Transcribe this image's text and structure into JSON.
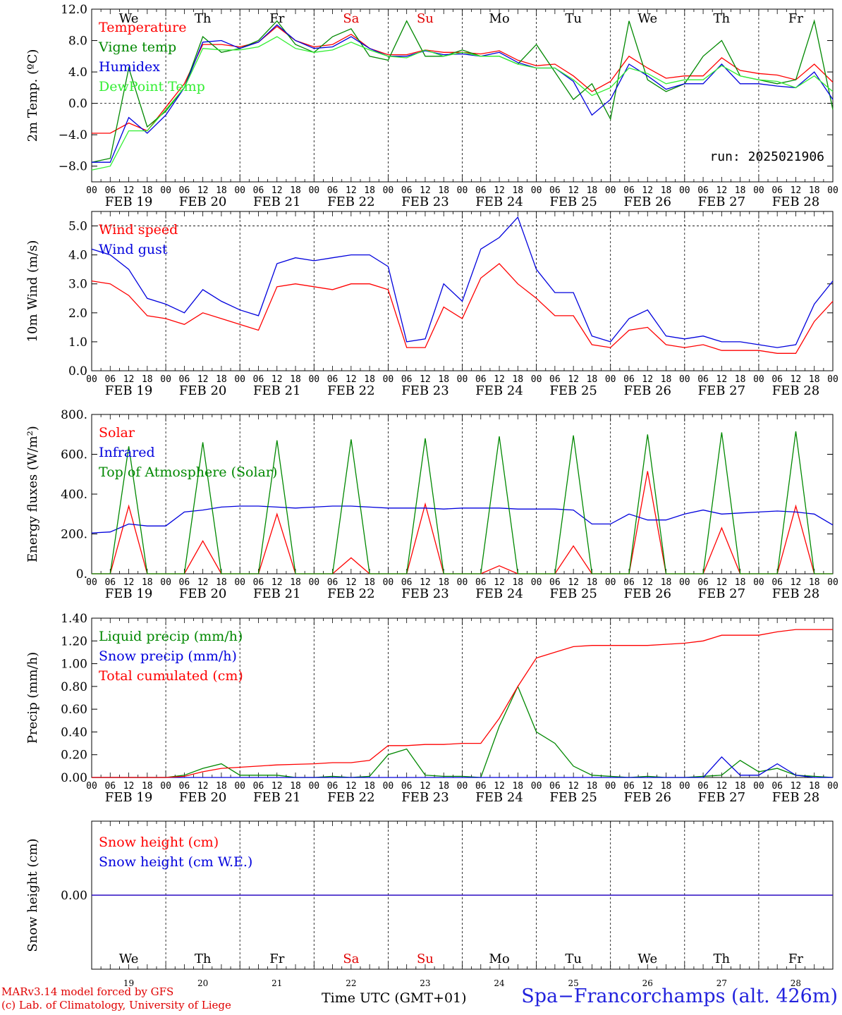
{
  "run_label": "run: 2025021906",
  "days": [
    "FEB 19",
    "FEB 20",
    "FEB 21",
    "FEB 22",
    "FEB 23",
    "FEB 24",
    "FEB 25",
    "FEB 26",
    "FEB 27",
    "FEB 28"
  ],
  "weekdays": [
    "We",
    "Th",
    "Fr",
    "Sa",
    "Su",
    "Mo",
    "Tu",
    "We",
    "Th",
    "Fr"
  ],
  "weekday_colors": [
    "#000000",
    "#000000",
    "#000000",
    "#e00000",
    "#e00000",
    "#000000",
    "#000000",
    "#000000",
    "#000000",
    "#000000"
  ],
  "day_numbers": [
    "19",
    "20",
    "21",
    "22",
    "23",
    "24",
    "25",
    "26",
    "27",
    "28"
  ],
  "hour_ticks": [
    "00",
    "06",
    "12",
    "18"
  ],
  "hour_end": "00",
  "footer": {
    "model": "MARv3.14 model forced by GFS",
    "lab": "(c) Lab. of Climatology, University of Liege",
    "axis": "Time UTC (GMT+01)",
    "station": "Spa−Francorchamps (alt. 426m)"
  },
  "chart_data": [
    {
      "type": "line",
      "ylabel": "2m Temp. (ºC)",
      "ylim": [
        -10,
        12
      ],
      "yticks": [
        "12.0",
        "8.0",
        "4.0",
        "0.0",
        "−4.0",
        "−8.0"
      ],
      "ytick_values": [
        12,
        8,
        4,
        0,
        -4,
        -8
      ],
      "x_unit": "hours since FEB 19 00 UTC",
      "x": [
        0,
        6,
        12,
        18,
        24,
        30,
        36,
        42,
        48,
        54,
        60,
        66,
        72,
        78,
        84,
        90,
        96,
        102,
        108,
        114,
        120,
        126,
        132,
        138,
        144,
        150,
        156,
        162,
        168,
        174,
        180,
        186,
        192,
        198,
        204,
        210,
        216,
        222,
        228,
        234,
        240
      ],
      "series": [
        {
          "name": "Temperature",
          "color": "#ff0000",
          "values": [
            -3.8,
            -3.8,
            -2.5,
            -3.5,
            -0.5,
            2.5,
            7.5,
            7.5,
            7.2,
            7.8,
            9.8,
            8.0,
            7.2,
            7.5,
            8.8,
            7.0,
            6.2,
            6.2,
            6.8,
            6.5,
            6.5,
            6.3,
            6.7,
            5.5,
            4.8,
            5.0,
            3.5,
            1.5,
            2.8,
            6.0,
            4.5,
            3.2,
            3.5,
            3.5,
            5.8,
            4.2,
            3.8,
            3.6,
            3.0,
            5.0,
            2.7
          ]
        },
        {
          "name": "Vigne temp",
          "color": "#008800",
          "values": [
            -7.5,
            -7.0,
            4.5,
            -3.0,
            -1.0,
            2.0,
            8.5,
            6.5,
            7.0,
            8.0,
            10.5,
            7.5,
            6.5,
            8.5,
            9.5,
            6.0,
            5.5,
            10.5,
            6.0,
            6.0,
            6.8,
            6.0,
            6.0,
            5.0,
            7.5,
            4.0,
            0.5,
            2.5,
            -2.0,
            10.5,
            3.0,
            1.5,
            2.5,
            6.0,
            8.0,
            3.5,
            3.0,
            2.5,
            3.0,
            10.5,
            -0.8
          ]
        },
        {
          "name": "Humidex",
          "color": "#0000dd",
          "values": [
            -7.5,
            -7.5,
            -1.8,
            -3.8,
            -1.5,
            2.0,
            7.8,
            8.0,
            7.0,
            7.8,
            10.0,
            8.0,
            7.0,
            7.2,
            8.5,
            7.0,
            6.0,
            6.0,
            6.7,
            6.2,
            6.3,
            6.0,
            6.5,
            5.2,
            4.5,
            4.5,
            2.8,
            -1.5,
            0.5,
            5.0,
            3.5,
            1.8,
            2.5,
            2.5,
            5.0,
            2.5,
            2.5,
            2.2,
            2.0,
            4.0,
            0.5
          ]
        },
        {
          "name": "DewPoint Temp",
          "color": "#33ee33",
          "values": [
            -8.5,
            -8.0,
            -3.5,
            -3.5,
            -0.8,
            2.0,
            7.0,
            6.8,
            6.8,
            7.2,
            8.5,
            7.0,
            6.5,
            6.8,
            7.8,
            6.8,
            6.0,
            5.8,
            6.8,
            6.0,
            6.5,
            6.0,
            6.0,
            5.0,
            4.5,
            4.5,
            3.0,
            1.0,
            2.0,
            4.5,
            3.8,
            2.5,
            3.0,
            3.0,
            4.8,
            3.5,
            3.0,
            2.8,
            2.0,
            3.5,
            1.5
          ]
        }
      ]
    },
    {
      "type": "line",
      "ylabel": "10m Wind (m/s)",
      "ylim": [
        0,
        5.5
      ],
      "yticks": [
        "5.0",
        "4.0",
        "3.0",
        "2.0",
        "1.0",
        "0.0"
      ],
      "ytick_values": [
        5,
        4,
        3,
        2,
        1,
        0
      ],
      "x_unit": "hours since FEB 19 00 UTC",
      "x": [
        0,
        6,
        12,
        18,
        24,
        30,
        36,
        42,
        48,
        54,
        60,
        66,
        72,
        78,
        84,
        90,
        96,
        102,
        108,
        114,
        120,
        126,
        132,
        138,
        144,
        150,
        156,
        162,
        168,
        174,
        180,
        186,
        192,
        198,
        204,
        210,
        216,
        222,
        228,
        234,
        240
      ],
      "series": [
        {
          "name": "Wind speed",
          "color": "#ff0000",
          "values": [
            3.1,
            3.0,
            2.6,
            1.9,
            1.8,
            1.6,
            2.0,
            1.8,
            1.6,
            1.4,
            2.9,
            3.0,
            2.9,
            2.8,
            3.0,
            3.0,
            2.8,
            0.8,
            0.8,
            2.2,
            1.8,
            3.2,
            3.7,
            3.0,
            2.5,
            1.9,
            1.9,
            0.9,
            0.8,
            1.4,
            1.5,
            0.9,
            0.8,
            0.9,
            0.7,
            0.7,
            0.7,
            0.6,
            0.6,
            1.7,
            2.4
          ]
        },
        {
          "name": "Wind gust",
          "color": "#0000dd",
          "values": [
            4.2,
            4.0,
            3.5,
            2.5,
            2.3,
            2.0,
            2.8,
            2.4,
            2.1,
            1.9,
            3.7,
            3.9,
            3.8,
            3.9,
            4.0,
            4.0,
            3.6,
            1.0,
            1.1,
            3.0,
            2.4,
            4.2,
            4.6,
            5.3,
            3.5,
            2.7,
            2.7,
            1.2,
            1.0,
            1.8,
            2.1,
            1.2,
            1.1,
            1.2,
            1.0,
            1.0,
            0.9,
            0.8,
            0.9,
            2.3,
            3.1
          ]
        }
      ]
    },
    {
      "type": "line",
      "ylabel": "Energy fluxes (W/m²)",
      "ylim": [
        0,
        800
      ],
      "yticks": [
        "800.",
        "600.",
        "400.",
        "200.",
        "0."
      ],
      "ytick_values": [
        800,
        600,
        400,
        200,
        0
      ],
      "x_unit": "hours since FEB 19 00 UTC",
      "x": [
        0,
        6,
        12,
        18,
        24,
        30,
        36,
        42,
        48,
        54,
        60,
        66,
        72,
        78,
        84,
        90,
        96,
        102,
        108,
        114,
        120,
        126,
        132,
        138,
        144,
        150,
        156,
        162,
        168,
        174,
        180,
        186,
        192,
        198,
        204,
        210,
        216,
        222,
        228,
        234,
        240
      ],
      "series": [
        {
          "name": "Solar",
          "color": "#ff0000",
          "values": [
            0,
            0,
            340,
            0,
            0,
            0,
            165,
            0,
            0,
            0,
            300,
            0,
            0,
            0,
            80,
            0,
            0,
            0,
            350,
            0,
            0,
            0,
            40,
            0,
            0,
            0,
            140,
            0,
            0,
            0,
            515,
            0,
            0,
            0,
            230,
            0,
            0,
            0,
            340,
            0,
            0
          ]
        },
        {
          "name": "Infrared",
          "color": "#0000dd",
          "values": [
            205,
            210,
            250,
            240,
            240,
            310,
            320,
            335,
            340,
            340,
            335,
            330,
            335,
            340,
            340,
            335,
            330,
            330,
            330,
            325,
            330,
            330,
            330,
            325,
            325,
            325,
            320,
            250,
            250,
            300,
            270,
            270,
            300,
            320,
            300,
            305,
            310,
            315,
            310,
            300,
            245
          ]
        },
        {
          "name": "Top of Atmosphere (Solar)",
          "color": "#008800",
          "values": [
            0,
            0,
            640,
            0,
            0,
            0,
            660,
            0,
            0,
            0,
            670,
            0,
            0,
            0,
            675,
            0,
            0,
            0,
            680,
            0,
            0,
            0,
            690,
            0,
            0,
            0,
            695,
            0,
            0,
            0,
            700,
            0,
            0,
            0,
            710,
            0,
            0,
            0,
            715,
            0,
            0
          ]
        }
      ]
    },
    {
      "type": "line",
      "ylabel": "Precip (mm/h)",
      "ylim": [
        0,
        1.4
      ],
      "yticks": [
        "1.40",
        "1.20",
        "1.00",
        "0.80",
        "0.60",
        "0.40",
        "0.20",
        "0.00"
      ],
      "ytick_values": [
        1.4,
        1.2,
        1.0,
        0.8,
        0.6,
        0.4,
        0.2,
        0.0
      ],
      "x_unit": "hours since FEB 19 00 UTC",
      "x": [
        0,
        6,
        12,
        18,
        24,
        30,
        36,
        42,
        48,
        54,
        60,
        66,
        72,
        78,
        84,
        90,
        96,
        102,
        108,
        114,
        120,
        126,
        132,
        138,
        144,
        150,
        156,
        162,
        168,
        174,
        180,
        186,
        192,
        198,
        204,
        210,
        216,
        222,
        228,
        234,
        240
      ],
      "series": [
        {
          "name": "Liquid precip (mm/h)",
          "color": "#008800",
          "values": [
            0,
            0,
            0,
            0,
            0,
            0.02,
            0.08,
            0.12,
            0.02,
            0.02,
            0.02,
            0,
            0,
            0.01,
            0,
            0.01,
            0.2,
            0.25,
            0.02,
            0.01,
            0.01,
            0,
            0.45,
            0.8,
            0.4,
            0.3,
            0.1,
            0.02,
            0.01,
            0,
            0.01,
            0,
            0,
            0.01,
            0.02,
            0.15,
            0.05,
            0.08,
            0.02,
            0.01,
            0
          ]
        },
        {
          "name": "Snow precip (mm/h)",
          "color": "#0000dd",
          "values": [
            0,
            0,
            0,
            0,
            0,
            0,
            0,
            0,
            0,
            0,
            0,
            0,
            0,
            0,
            0,
            0,
            0,
            0,
            0,
            0,
            0,
            0,
            0,
            0,
            0,
            0,
            0,
            0,
            0,
            0,
            0,
            0,
            0,
            0,
            0.18,
            0.02,
            0.02,
            0.12,
            0.02,
            0,
            0
          ]
        },
        {
          "name": "Total cumulated (cm)",
          "color": "#ff0000",
          "values": [
            0,
            0,
            0,
            0,
            0,
            0.01,
            0.05,
            0.08,
            0.09,
            0.1,
            0.11,
            0.115,
            0.12,
            0.13,
            0.13,
            0.15,
            0.28,
            0.28,
            0.29,
            0.29,
            0.3,
            0.3,
            0.52,
            0.8,
            1.05,
            1.1,
            1.15,
            1.16,
            1.16,
            1.16,
            1.16,
            1.17,
            1.18,
            1.2,
            1.25,
            1.25,
            1.25,
            1.28,
            1.3,
            1.3,
            1.3
          ]
        }
      ]
    },
    {
      "type": "line",
      "ylabel": "Snow height (cm)",
      "ylim": [
        -1,
        1
      ],
      "yticks": [
        "0.00"
      ],
      "ytick_values": [
        0
      ],
      "x_unit": "hours since FEB 19 00 UTC",
      "x": [
        0,
        240
      ],
      "series": [
        {
          "name": "Snow height (cm)",
          "color": "#ff0000",
          "values": [
            0,
            0
          ]
        },
        {
          "name": "Snow height (cm W.E.)",
          "color": "#0000dd",
          "values": [
            0,
            0
          ]
        }
      ]
    }
  ]
}
